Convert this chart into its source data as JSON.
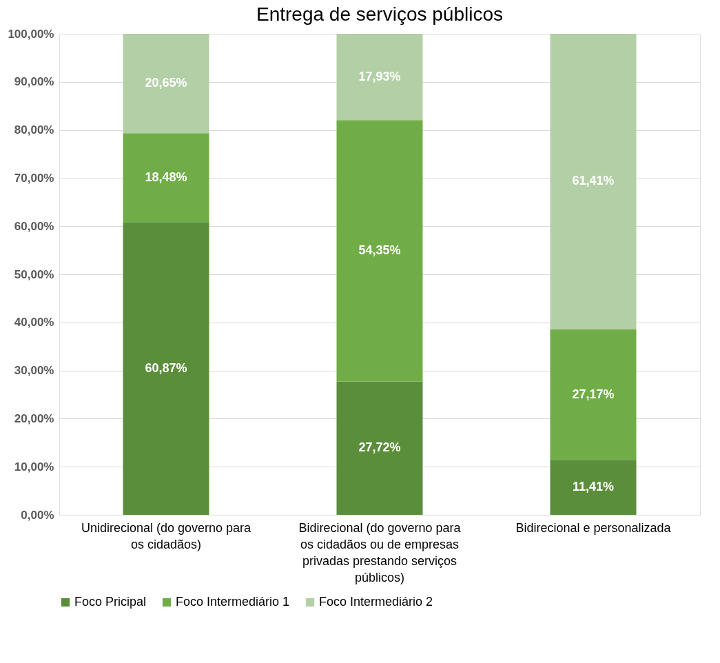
{
  "chart_data": {
    "type": "bar",
    "stacked": true,
    "title": "Entrega de serviços públicos",
    "categories": [
      "Unidirecional (do governo para os cidadãos)",
      "Bidirecional (do governo para os cidadãos ou de empresas privadas prestando serviços públicos)",
      "Bidirecional e personalizada"
    ],
    "series": [
      {
        "name": "Foco Pricipal",
        "color": "#5b8e3b",
        "values": [
          60.87,
          27.72,
          11.41
        ],
        "value_labels": [
          "60,87%",
          "27,72%",
          "11,41%"
        ]
      },
      {
        "name": "Foco Intermediário 1",
        "color": "#70ad47",
        "values": [
          18.48,
          54.35,
          27.17
        ],
        "value_labels": [
          "18,48%",
          "54,35%",
          "27,17%"
        ]
      },
      {
        "name": "Foco Intermediário 2",
        "color": "#b3cfa6",
        "values": [
          20.65,
          17.93,
          61.41
        ],
        "value_labels": [
          "20,65%",
          "17,93%",
          "61,41%"
        ]
      }
    ],
    "ylim": [
      0,
      100
    ],
    "yticks": [
      {
        "value": 0,
        "label": "0,00%"
      },
      {
        "value": 10,
        "label": "10,00%"
      },
      {
        "value": 20,
        "label": "20,00%"
      },
      {
        "value": 30,
        "label": "30,00%"
      },
      {
        "value": 40,
        "label": "40,00%"
      },
      {
        "value": 50,
        "label": "50,00%"
      },
      {
        "value": 60,
        "label": "60,00%"
      },
      {
        "value": 70,
        "label": "70,00%"
      },
      {
        "value": 80,
        "label": "80,00%"
      },
      {
        "value": 90,
        "label": "90,00%"
      },
      {
        "value": 100,
        "label": "100,00%"
      }
    ],
    "grid": "y",
    "legend": "bottom"
  }
}
